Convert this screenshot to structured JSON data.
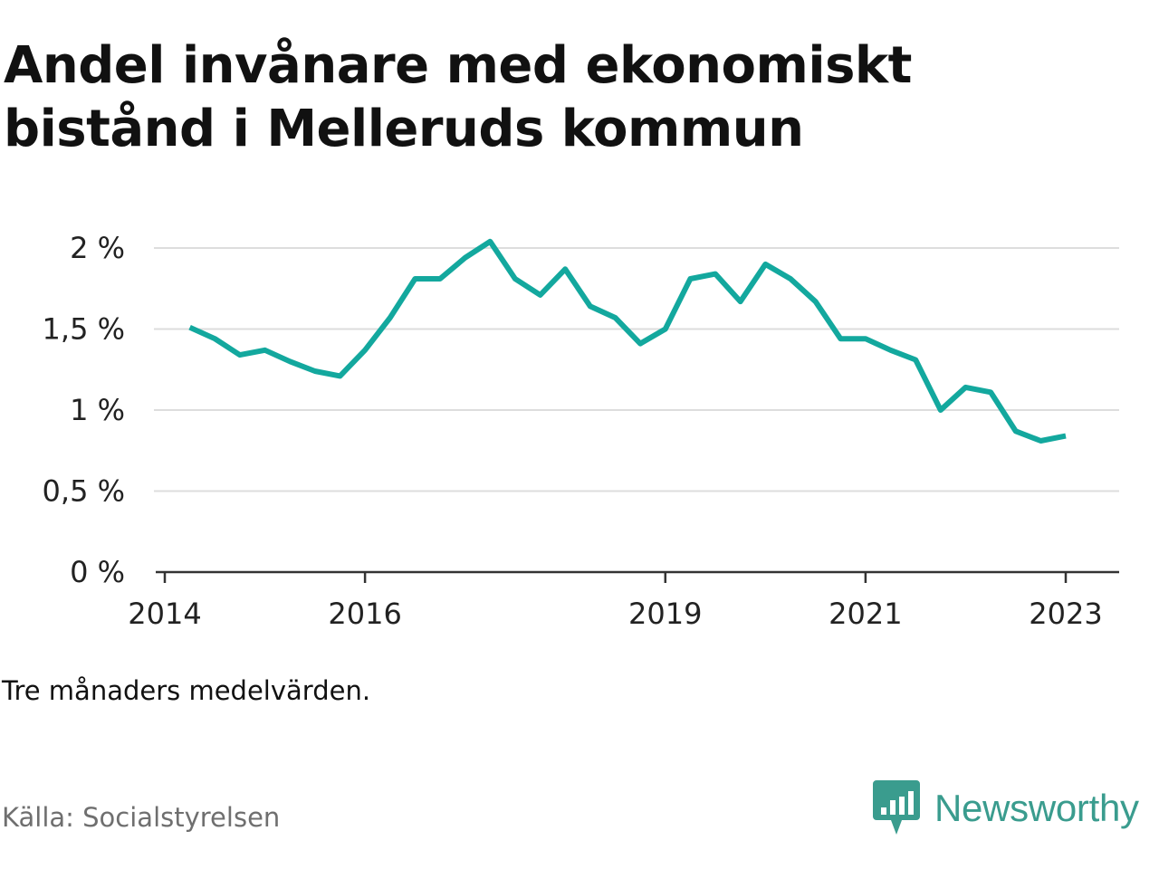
{
  "title": "Andel invånare med ekonomiskt bistånd i Melleruds kommun",
  "note": "Tre månaders medelvärden.",
  "source": "Källa: Socialstyrelsen",
  "brand": {
    "name": "Newsworthy",
    "icon": "newsworthy-logo-icon",
    "color": "#3a9c8e"
  },
  "colors": {
    "line": "#13a89e",
    "grid": "#dddddd",
    "axis": "#333333"
  },
  "chart_data": {
    "type": "line",
    "title": "Andel invånare med ekonomiskt bistånd i Melleruds kommun",
    "xlabel": "",
    "ylabel": "",
    "grid": true,
    "legend": "none",
    "xlim": [
      "2014-01",
      "2023-06"
    ],
    "ylim": [
      0,
      2
    ],
    "y_ticks": [
      {
        "value": 0,
        "label": "0 %"
      },
      {
        "value": 0.5,
        "label": "0,5 %"
      },
      {
        "value": 1,
        "label": "1 %"
      },
      {
        "value": 1.5,
        "label": "1,5 %"
      },
      {
        "value": 2,
        "label": "2 %"
      }
    ],
    "x_ticks": [
      {
        "value": "2014-01",
        "label": "2014"
      },
      {
        "value": "2016-01",
        "label": "2016"
      },
      {
        "value": "2019-01",
        "label": "2019"
      },
      {
        "value": "2021-01",
        "label": "2021"
      },
      {
        "value": "2023-01",
        "label": "2023"
      }
    ],
    "series": [
      {
        "points": [
          {
            "x": "2014-04",
            "y": 1.51
          },
          {
            "x": "2014-07",
            "y": 1.44
          },
          {
            "x": "2014-10",
            "y": 1.34
          },
          {
            "x": "2015-01",
            "y": 1.37
          },
          {
            "x": "2015-04",
            "y": 1.3
          },
          {
            "x": "2015-07",
            "y": 1.24
          },
          {
            "x": "2015-10",
            "y": 1.21
          },
          {
            "x": "2016-01",
            "y": 1.37
          },
          {
            "x": "2016-04",
            "y": 1.57
          },
          {
            "x": "2016-07",
            "y": 1.81
          },
          {
            "x": "2016-10",
            "y": 1.81
          },
          {
            "x": "2017-01",
            "y": 1.94
          },
          {
            "x": "2017-04",
            "y": 2.04
          },
          {
            "x": "2017-07",
            "y": 1.81
          },
          {
            "x": "2017-10",
            "y": 1.71
          },
          {
            "x": "2018-01",
            "y": 1.87
          },
          {
            "x": "2018-04",
            "y": 1.64
          },
          {
            "x": "2018-07",
            "y": 1.57
          },
          {
            "x": "2018-10",
            "y": 1.41
          },
          {
            "x": "2019-01",
            "y": 1.5
          },
          {
            "x": "2019-04",
            "y": 1.81
          },
          {
            "x": "2019-07",
            "y": 1.84
          },
          {
            "x": "2019-10",
            "y": 1.67
          },
          {
            "x": "2020-01",
            "y": 1.9
          },
          {
            "x": "2020-04",
            "y": 1.81
          },
          {
            "x": "2020-07",
            "y": 1.67
          },
          {
            "x": "2020-10",
            "y": 1.44
          },
          {
            "x": "2021-01",
            "y": 1.44
          },
          {
            "x": "2021-04",
            "y": 1.37
          },
          {
            "x": "2021-07",
            "y": 1.31
          },
          {
            "x": "2021-10",
            "y": 1.0
          },
          {
            "x": "2022-01",
            "y": 1.14
          },
          {
            "x": "2022-04",
            "y": 1.11
          },
          {
            "x": "2022-07",
            "y": 0.87
          },
          {
            "x": "2022-10",
            "y": 0.81
          },
          {
            "x": "2023-01",
            "y": 0.84
          }
        ]
      }
    ]
  }
}
